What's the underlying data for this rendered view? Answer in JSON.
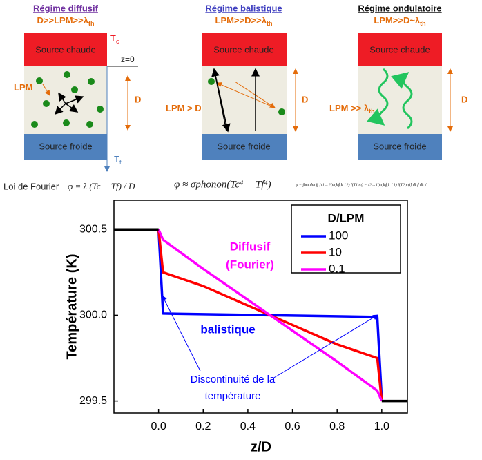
{
  "diagram": {
    "panels": [
      {
        "title": "Régime diffusif",
        "condition": [
          "D>>LPM>>λ",
          "th"
        ],
        "hot": "Source chaude",
        "cold": "Source froide",
        "d_label": "D",
        "mfp_label": [
          "LPM",
          ""
        ]
      },
      {
        "title": "Régime balistique",
        "condition": [
          "LPM>>D>>λ",
          "th"
        ],
        "hot": "Source chaude",
        "cold": "Source froide",
        "d_label": "D",
        "mfp_label": [
          "LPM > D",
          ""
        ]
      },
      {
        "title": "Régime ondulatoire",
        "condition": [
          "LPM>>D~λ",
          "th"
        ],
        "hot": "Source chaude",
        "cold": "Source froide",
        "d_label": "D",
        "mfp_label": [
          "LPM >> λ",
          "th"
        ]
      }
    ],
    "tc": [
      "T",
      "c"
    ],
    "tf": [
      "T",
      "f"
    ],
    "z0": "z=0",
    "fourier_label": "Loi de Fourier",
    "formulas": [
      "φ = λ (Tc − Tf) / D",
      "φ ≈ σphonon(Tc⁴ − Tf⁴)",
      "φ = ∫ħω dω ∫∫ [τ1→2(ω,k∥,k⊥2) f(T1,ω) − τ2→1(ω,k∥,k⊥1) f(T2,ω)] dk∥ dk⊥"
    ]
  },
  "chart_data": {
    "type": "line",
    "x_label": "z/D",
    "y_label": "Température (K)",
    "xlim": [
      -0.2,
      1.115
    ],
    "ylim": [
      299.43,
      300.67
    ],
    "xticks": [
      {
        "value": 0,
        "label": "0.0"
      },
      0.2,
      0.4,
      0.6,
      0.8,
      {
        "value": 1,
        "label": "1.0"
      }
    ],
    "yticks": [
      299.5,
      {
        "value": 300,
        "label": "300.0"
      },
      300.5
    ],
    "legend_title": "D/LPM",
    "legend_position": "upper right",
    "series": [
      {
        "name": "100",
        "color": "#0000ff",
        "x": [
          0,
          0.02,
          0.5,
          0.98,
          1.0
        ],
        "values": [
          300.5,
          300.01,
          300.0,
          299.99,
          299.51
        ]
      },
      {
        "name": "10",
        "color": "#ff0000",
        "x": [
          0,
          0.02,
          0.2,
          0.5,
          0.8,
          0.98,
          1.0
        ],
        "values": [
          300.5,
          300.25,
          300.17,
          300.0,
          299.83,
          299.75,
          299.5
        ]
      },
      {
        "name": "0.1",
        "color": "#ff00ff",
        "x": [
          0,
          0.02,
          0.2,
          0.5,
          0.8,
          0.98,
          1.0
        ],
        "values": [
          300.5,
          300.44,
          300.27,
          300.0,
          299.73,
          299.56,
          299.5
        ]
      }
    ],
    "boundary": {
      "color": "#000000",
      "x": [
        -0.2,
        0,
        null,
        1.0,
        1.115
      ],
      "values": [
        300.5,
        300.5,
        null,
        299.5,
        299.5
      ]
    },
    "annotations": {
      "diffusive": [
        "Diffusif",
        "(Fourier)"
      ],
      "ballistic": "balistique",
      "discontinuity": [
        "Discontinuité de la",
        "température"
      ]
    }
  }
}
